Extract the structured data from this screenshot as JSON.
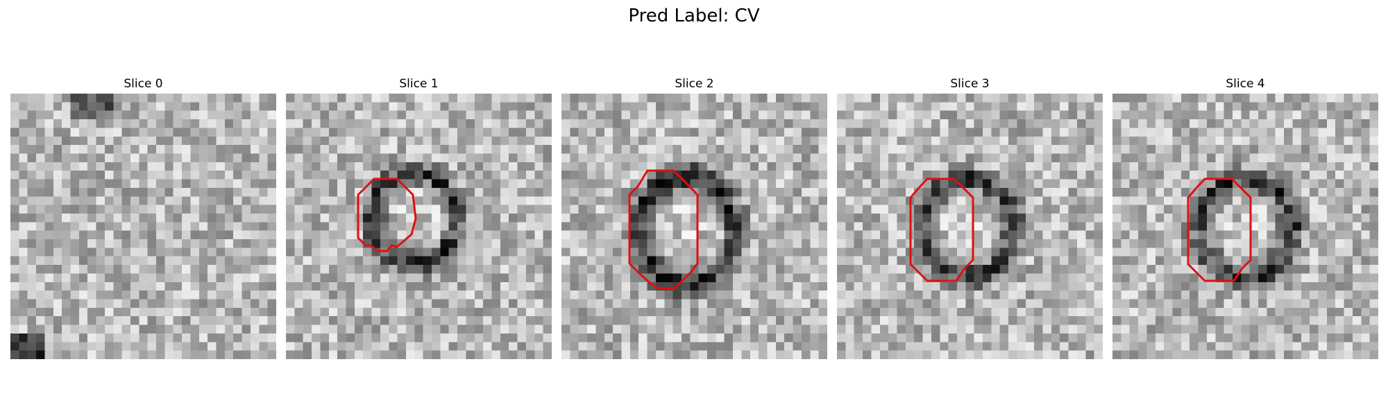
{
  "figure": {
    "title": "Pred Label: CV",
    "contour_color": "#e01010",
    "panels": [
      {
        "title": "Slice 0",
        "has_contour": false
      },
      {
        "title": "Slice 1",
        "has_contour": true
      },
      {
        "title": "Slice 2",
        "has_contour": true
      },
      {
        "title": "Slice 3",
        "has_contour": true
      },
      {
        "title": "Slice 4",
        "has_contour": true
      }
    ]
  }
}
